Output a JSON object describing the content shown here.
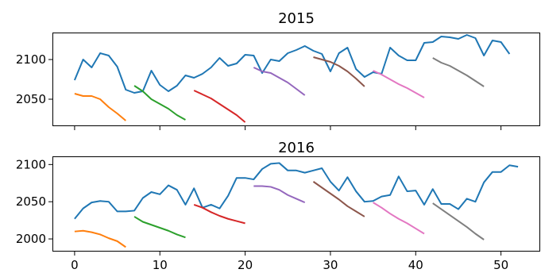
{
  "chart_data": [
    {
      "type": "line",
      "title": "2015",
      "xlabel": "",
      "ylabel": "",
      "xlim": [
        -2.6,
        54.6
      ],
      "ylim": [
        2016,
        2134
      ],
      "yticks": [
        2050,
        2100
      ],
      "xticks": [
        0,
        10,
        20,
        30,
        40,
        50
      ],
      "show_xtick_labels": false,
      "grid": false,
      "series": [
        {
          "color": "#1f77b4",
          "x": [
            0,
            1,
            2,
            3,
            4,
            5,
            6,
            7,
            8,
            9,
            10,
            11,
            12,
            13,
            14,
            15,
            16,
            17,
            18,
            19,
            20,
            21,
            22,
            23,
            24,
            25,
            26,
            27,
            28,
            29,
            30,
            31,
            32,
            33,
            34,
            35,
            36,
            37,
            38,
            39,
            40,
            41,
            42,
            43,
            44,
            45,
            46,
            47,
            48,
            49,
            50,
            51
          ],
          "y": [
            2074,
            2100,
            2090,
            2108,
            2105,
            2091,
            2062,
            2058,
            2060,
            2086,
            2068,
            2060,
            2067,
            2080,
            2077,
            2082,
            2090,
            2102,
            2092,
            2095,
            2106,
            2105,
            2083,
            2100,
            2098,
            2108,
            2112,
            2117,
            2111,
            2107,
            2085,
            2108,
            2115,
            2088,
            2078,
            2084,
            2082,
            2115,
            2105,
            2099,
            2099,
            2121,
            2122,
            2129,
            2128,
            2126,
            2131,
            2127,
            2105,
            2124,
            2122,
            2107
          ]
        },
        {
          "color": "#ff7f0e",
          "x": [
            0,
            1,
            2,
            3,
            4,
            5,
            6
          ],
          "y": [
            2057,
            2054,
            2054,
            2050,
            2040,
            2032,
            2023
          ]
        },
        {
          "color": "#2ca02c",
          "x": [
            7,
            8,
            9,
            10,
            11,
            12,
            13
          ],
          "y": [
            2067,
            2060,
            2050,
            2044,
            2038,
            2030,
            2024
          ]
        },
        {
          "color": "#d62728",
          "x": [
            14,
            15,
            16,
            17,
            18,
            19,
            20
          ],
          "y": [
            2061,
            2056,
            2051,
            2044,
            2037,
            2030,
            2021
          ]
        },
        {
          "color": "#9467bd",
          "x": [
            21,
            22,
            23,
            24,
            25,
            26,
            27
          ],
          "y": [
            2090,
            2085,
            2083,
            2077,
            2071,
            2063,
            2055
          ]
        },
        {
          "color": "#8c564b",
          "x": [
            28,
            29,
            30,
            31,
            32,
            33,
            34
          ],
          "y": [
            2103,
            2100,
            2097,
            2092,
            2085,
            2076,
            2066
          ]
        },
        {
          "color": "#e377c2",
          "x": [
            35,
            36,
            37,
            38,
            39,
            40,
            41
          ],
          "y": [
            2086,
            2081,
            2075,
            2069,
            2064,
            2058,
            2052
          ]
        },
        {
          "color": "#7f7f7f",
          "x": [
            42,
            43,
            44,
            45,
            46,
            47,
            48
          ],
          "y": [
            2102,
            2096,
            2092,
            2086,
            2080,
            2073,
            2066
          ]
        }
      ]
    },
    {
      "type": "line",
      "title": "2016",
      "xlabel": "",
      "ylabel": "",
      "xlim": [
        -2.6,
        54.6
      ],
      "ylim": [
        1983,
        2111
      ],
      "yticks": [
        2000,
        2050,
        2100
      ],
      "xticks": [
        0,
        10,
        20,
        30,
        40,
        50
      ],
      "show_xtick_labels": true,
      "grid": false,
      "series": [
        {
          "color": "#1f77b4",
          "x": [
            0,
            1,
            2,
            3,
            4,
            5,
            6,
            7,
            8,
            9,
            10,
            11,
            12,
            13,
            14,
            15,
            16,
            17,
            18,
            19,
            20,
            21,
            22,
            23,
            24,
            25,
            26,
            27,
            28,
            29,
            30,
            31,
            32,
            33,
            34,
            35,
            36,
            37,
            38,
            39,
            40,
            41,
            42,
            43,
            44,
            45,
            46,
            47,
            48,
            49,
            50,
            51,
            52
          ],
          "y": [
            2027,
            2041,
            2049,
            2051,
            2050,
            2037,
            2037,
            2038,
            2055,
            2063,
            2060,
            2072,
            2066,
            2046,
            2068,
            2042,
            2046,
            2041,
            2058,
            2082,
            2082,
            2080,
            2094,
            2101,
            2102,
            2092,
            2092,
            2089,
            2092,
            2095,
            2077,
            2065,
            2083,
            2064,
            2050,
            2051,
            2057,
            2059,
            2084,
            2064,
            2065,
            2046,
            2067,
            2047,
            2047,
            2040,
            2054,
            2050,
            2076,
            2090,
            2090,
            2099,
            2097
          ]
        },
        {
          "color": "#ff7f0e",
          "x": [
            0,
            1,
            2,
            3,
            4,
            5,
            6
          ],
          "y": [
            2010,
            2011,
            2009,
            2006,
            2001,
            1997,
            1989
          ]
        },
        {
          "color": "#2ca02c",
          "x": [
            7,
            8,
            9,
            10,
            11,
            12,
            13
          ],
          "y": [
            2030,
            2023,
            2019,
            2015,
            2011,
            2006,
            2002
          ]
        },
        {
          "color": "#d62728",
          "x": [
            14,
            15,
            16,
            17,
            18,
            19,
            20
          ],
          "y": [
            2046,
            2042,
            2036,
            2031,
            2027,
            2024,
            2021
          ]
        },
        {
          "color": "#9467bd",
          "x": [
            21,
            22,
            23,
            24,
            25,
            26,
            27
          ],
          "y": [
            2071,
            2071,
            2070,
            2066,
            2059,
            2054,
            2049
          ]
        },
        {
          "color": "#8c564b",
          "x": [
            28,
            29,
            30,
            31,
            32,
            33,
            34
          ],
          "y": [
            2077,
            2069,
            2061,
            2053,
            2044,
            2037,
            2030
          ]
        },
        {
          "color": "#e377c2",
          "x": [
            35,
            36,
            37,
            38,
            39,
            40,
            41
          ],
          "y": [
            2049,
            2042,
            2034,
            2027,
            2021,
            2014,
            2007
          ]
        },
        {
          "color": "#7f7f7f",
          "x": [
            42,
            43,
            44,
            45,
            46,
            47,
            48
          ],
          "y": [
            2048,
            2040,
            2032,
            2024,
            2016,
            2007,
            1999
          ]
        }
      ]
    }
  ]
}
